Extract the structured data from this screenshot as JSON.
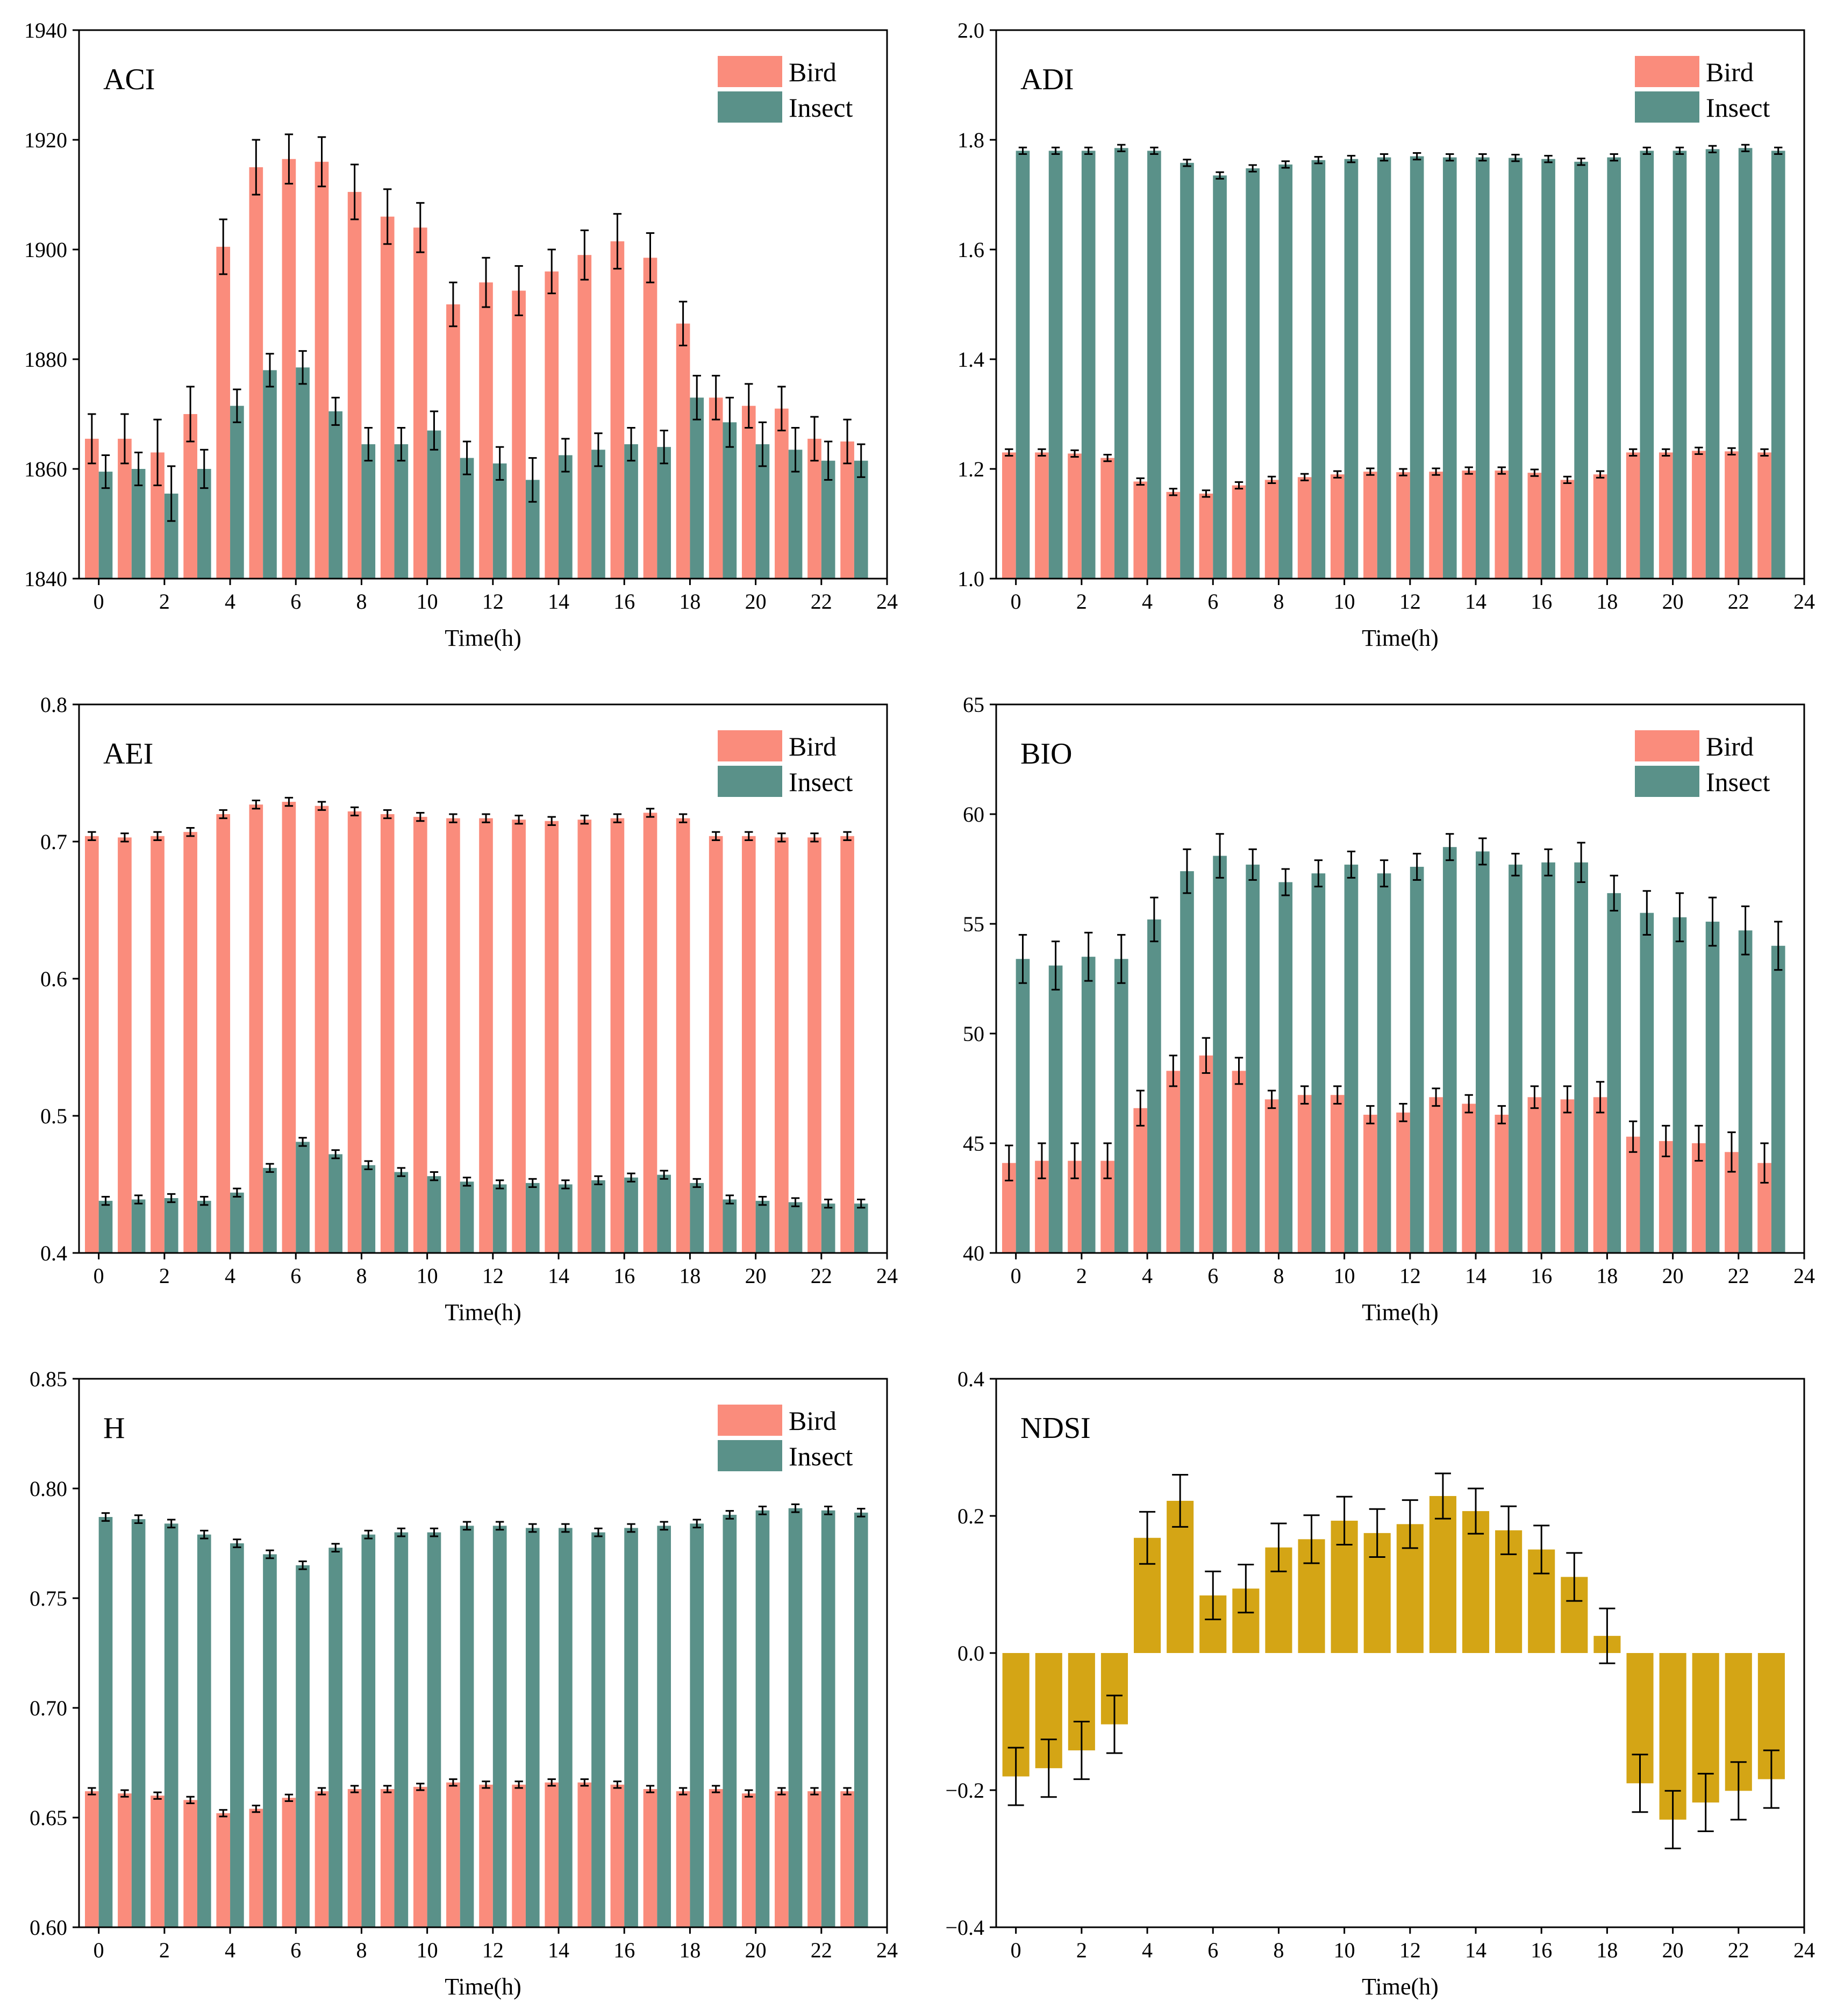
{
  "figure": {
    "xlabel": "Time(h)"
  },
  "colors": {
    "bird": "#FA8C7C",
    "insect": "#5A9189",
    "ndsi": "#D4A515",
    "axis": "#000000"
  },
  "legend": {
    "bird_label": "Bird",
    "insect_label": "Insect"
  },
  "chart_data": [
    {
      "id": "aci",
      "type": "bar",
      "title": "ACI",
      "xlabel": "Time(h)",
      "ylabel": "",
      "xlim": [
        -0.6,
        24
      ],
      "ylim": [
        1840,
        1940
      ],
      "xticks": [
        0,
        2,
        4,
        6,
        8,
        10,
        12,
        14,
        16,
        18,
        20,
        22,
        24
      ],
      "xtick_labels": [
        "0",
        "2",
        "4",
        "6",
        "8",
        "10",
        "12",
        "14",
        "16",
        "18",
        "20",
        "22",
        "24"
      ],
      "yticks": [
        1840,
        1860,
        1880,
        1900,
        1920,
        1940
      ],
      "ytick_labels": [
        "1840",
        "1860",
        "1880",
        "1900",
        "1920",
        "1940"
      ],
      "legend": "top-right",
      "x": [
        0,
        1,
        2,
        3,
        4,
        5,
        6,
        7,
        8,
        9,
        10,
        11,
        12,
        13,
        14,
        15,
        16,
        17,
        18,
        19,
        20,
        21,
        22,
        23
      ],
      "series": [
        {
          "name": "Bird",
          "values": [
            1865.5,
            1865.5,
            1863,
            1870,
            1900.5,
            1915,
            1916.5,
            1916,
            1910.5,
            1906,
            1904,
            1890,
            1894,
            1892.5,
            1896,
            1899,
            1901.5,
            1898.5,
            1886.5,
            1873,
            1871.5,
            1871,
            1865.5,
            1865
          ],
          "errors": [
            4.5,
            4.5,
            6,
            5,
            5,
            5,
            4.5,
            4.5,
            5,
            5,
            4.5,
            4,
            4.5,
            4.5,
            4,
            4.5,
            5,
            4.5,
            4,
            4,
            4,
            4,
            4,
            4
          ]
        },
        {
          "name": "Insect",
          "values": [
            1859.5,
            1860,
            1855.5,
            1860,
            1871.5,
            1878,
            1878.5,
            1870.5,
            1864.5,
            1864.5,
            1867,
            1862,
            1861,
            1858,
            1862.5,
            1863.5,
            1864.5,
            1864,
            1873,
            1868.5,
            1864.5,
            1863.5,
            1861.5,
            1861.5
          ],
          "errors": [
            3,
            3,
            5,
            3.5,
            3,
            3,
            3,
            2.5,
            3,
            3,
            3.5,
            3,
            3,
            4,
            3,
            3,
            3,
            3,
            4,
            4.5,
            4,
            4,
            3.5,
            3
          ]
        }
      ]
    },
    {
      "id": "adi",
      "type": "bar",
      "title": "ADI",
      "xlabel": "Time(h)",
      "ylabel": "",
      "xlim": [
        -0.6,
        24
      ],
      "ylim": [
        1.0,
        2.0
      ],
      "xticks": [
        0,
        2,
        4,
        6,
        8,
        10,
        12,
        14,
        16,
        18,
        20,
        22,
        24
      ],
      "xtick_labels": [
        "0",
        "2",
        "4",
        "6",
        "8",
        "10",
        "12",
        "14",
        "16",
        "18",
        "20",
        "22",
        "24"
      ],
      "yticks": [
        1.0,
        1.2,
        1.4,
        1.6,
        1.8,
        2.0
      ],
      "ytick_labels": [
        "1.0",
        "1.2",
        "1.4",
        "1.6",
        "1.8",
        "2.0"
      ],
      "legend": "top-right",
      "x": [
        0,
        1,
        2,
        3,
        4,
        5,
        6,
        7,
        8,
        9,
        10,
        11,
        12,
        13,
        14,
        15,
        16,
        17,
        18,
        19,
        20,
        21,
        22,
        23
      ],
      "series": [
        {
          "name": "Bird",
          "values": [
            1.23,
            1.23,
            1.228,
            1.22,
            1.177,
            1.158,
            1.155,
            1.17,
            1.18,
            1.185,
            1.19,
            1.195,
            1.194,
            1.195,
            1.197,
            1.197,
            1.193,
            1.18,
            1.19,
            1.23,
            1.23,
            1.233,
            1.232,
            1.23
          ],
          "errors": [
            0.006,
            0.006,
            0.006,
            0.006,
            0.006,
            0.006,
            0.006,
            0.006,
            0.006,
            0.006,
            0.006,
            0.006,
            0.006,
            0.006,
            0.006,
            0.006,
            0.006,
            0.006,
            0.006,
            0.006,
            0.006,
            0.006,
            0.006,
            0.006
          ]
        },
        {
          "name": "Insect",
          "values": [
            1.78,
            1.78,
            1.78,
            1.785,
            1.78,
            1.758,
            1.735,
            1.748,
            1.755,
            1.763,
            1.765,
            1.768,
            1.77,
            1.768,
            1.768,
            1.767,
            1.765,
            1.76,
            1.768,
            1.78,
            1.78,
            1.783,
            1.785,
            1.78
          ],
          "errors": [
            0.006,
            0.006,
            0.006,
            0.006,
            0.006,
            0.006,
            0.006,
            0.006,
            0.006,
            0.006,
            0.006,
            0.006,
            0.006,
            0.006,
            0.006,
            0.006,
            0.006,
            0.006,
            0.006,
            0.006,
            0.006,
            0.006,
            0.006,
            0.006
          ]
        }
      ]
    },
    {
      "id": "aei",
      "type": "bar",
      "title": "AEI",
      "xlabel": "Time(h)",
      "ylabel": "",
      "xlim": [
        -0.6,
        24
      ],
      "ylim": [
        0.4,
        0.8
      ],
      "xticks": [
        0,
        2,
        4,
        6,
        8,
        10,
        12,
        14,
        16,
        18,
        20,
        22,
        24
      ],
      "xtick_labels": [
        "0",
        "2",
        "4",
        "6",
        "8",
        "10",
        "12",
        "14",
        "16",
        "18",
        "20",
        "22",
        "24"
      ],
      "yticks": [
        0.4,
        0.5,
        0.6,
        0.7,
        0.8
      ],
      "ytick_labels": [
        "0.4",
        "0.5",
        "0.6",
        "0.7",
        "0.8"
      ],
      "legend": "top-right",
      "x": [
        0,
        1,
        2,
        3,
        4,
        5,
        6,
        7,
        8,
        9,
        10,
        11,
        12,
        13,
        14,
        15,
        16,
        17,
        18,
        19,
        20,
        21,
        22,
        23
      ],
      "series": [
        {
          "name": "Bird",
          "values": [
            0.704,
            0.703,
            0.704,
            0.707,
            0.72,
            0.727,
            0.729,
            0.726,
            0.722,
            0.72,
            0.718,
            0.717,
            0.717,
            0.716,
            0.715,
            0.716,
            0.717,
            0.721,
            0.717,
            0.704,
            0.704,
            0.703,
            0.703,
            0.704
          ],
          "errors": [
            0.003,
            0.003,
            0.003,
            0.003,
            0.003,
            0.003,
            0.003,
            0.003,
            0.003,
            0.003,
            0.003,
            0.003,
            0.003,
            0.003,
            0.003,
            0.003,
            0.003,
            0.003,
            0.003,
            0.003,
            0.003,
            0.003,
            0.003,
            0.003
          ]
        },
        {
          "name": "Insect",
          "values": [
            0.438,
            0.439,
            0.44,
            0.438,
            0.444,
            0.462,
            0.481,
            0.472,
            0.464,
            0.459,
            0.456,
            0.452,
            0.45,
            0.451,
            0.45,
            0.453,
            0.455,
            0.457,
            0.451,
            0.439,
            0.438,
            0.437,
            0.436,
            0.436
          ],
          "errors": [
            0.003,
            0.003,
            0.003,
            0.003,
            0.003,
            0.003,
            0.003,
            0.003,
            0.003,
            0.003,
            0.003,
            0.003,
            0.003,
            0.003,
            0.003,
            0.003,
            0.003,
            0.003,
            0.003,
            0.003,
            0.003,
            0.003,
            0.003,
            0.003
          ]
        }
      ]
    },
    {
      "id": "bio",
      "type": "bar",
      "title": "BIO",
      "xlabel": "Time(h)",
      "ylabel": "",
      "xlim": [
        -0.6,
        24
      ],
      "ylim": [
        40,
        65
      ],
      "xticks": [
        0,
        2,
        4,
        6,
        8,
        10,
        12,
        14,
        16,
        18,
        20,
        22,
        24
      ],
      "xtick_labels": [
        "0",
        "2",
        "4",
        "6",
        "8",
        "10",
        "12",
        "14",
        "16",
        "18",
        "20",
        "22",
        "24"
      ],
      "yticks": [
        40,
        45,
        50,
        55,
        60,
        65
      ],
      "ytick_labels": [
        "40",
        "45",
        "50",
        "55",
        "60",
        "65"
      ],
      "legend": "top-right",
      "x": [
        0,
        1,
        2,
        3,
        4,
        5,
        6,
        7,
        8,
        9,
        10,
        11,
        12,
        13,
        14,
        15,
        16,
        17,
        18,
        19,
        20,
        21,
        22,
        23
      ],
      "series": [
        {
          "name": "Bird",
          "values": [
            44.1,
            44.2,
            44.2,
            44.2,
            46.6,
            48.3,
            49.0,
            48.3,
            47.0,
            47.2,
            47.2,
            46.3,
            46.4,
            47.1,
            46.8,
            46.3,
            47.1,
            47.0,
            47.1,
            45.3,
            45.1,
            45.0,
            44.6,
            44.1
          ],
          "errors": [
            0.8,
            0.8,
            0.8,
            0.8,
            0.8,
            0.7,
            0.8,
            0.6,
            0.4,
            0.4,
            0.4,
            0.4,
            0.4,
            0.4,
            0.4,
            0.4,
            0.5,
            0.6,
            0.7,
            0.7,
            0.7,
            0.8,
            0.9,
            0.9
          ]
        },
        {
          "name": "Insect",
          "values": [
            53.4,
            53.1,
            53.5,
            53.4,
            55.2,
            57.4,
            58.1,
            57.7,
            56.9,
            57.3,
            57.7,
            57.3,
            57.6,
            58.5,
            58.3,
            57.7,
            57.8,
            57.8,
            56.4,
            55.5,
            55.3,
            55.1,
            54.7,
            54.0
          ],
          "errors": [
            1.1,
            1.1,
            1.1,
            1.1,
            1.0,
            1.0,
            1.0,
            0.7,
            0.6,
            0.6,
            0.6,
            0.6,
            0.6,
            0.6,
            0.6,
            0.5,
            0.6,
            0.9,
            0.8,
            1.0,
            1.1,
            1.1,
            1.1,
            1.1
          ]
        }
      ]
    },
    {
      "id": "h",
      "type": "bar",
      "title": "H",
      "xlabel": "Time(h)",
      "ylabel": "",
      "xlim": [
        -0.6,
        24
      ],
      "ylim": [
        0.6,
        0.85
      ],
      "xticks": [
        0,
        2,
        4,
        6,
        8,
        10,
        12,
        14,
        16,
        18,
        20,
        22,
        24
      ],
      "xtick_labels": [
        "0",
        "2",
        "4",
        "6",
        "8",
        "10",
        "12",
        "14",
        "16",
        "18",
        "20",
        "22",
        "24"
      ],
      "yticks": [
        0.6,
        0.65,
        0.7,
        0.75,
        0.8,
        0.85
      ],
      "ytick_labels": [
        "0.60",
        "0.65",
        "0.70",
        "0.75",
        "0.80",
        "0.85"
      ],
      "legend": "top-right",
      "x": [
        0,
        1,
        2,
        3,
        4,
        5,
        6,
        7,
        8,
        9,
        10,
        11,
        12,
        13,
        14,
        15,
        16,
        17,
        18,
        19,
        20,
        21,
        22,
        23
      ],
      "series": [
        {
          "name": "Bird",
          "values": [
            0.662,
            0.661,
            0.66,
            0.658,
            0.652,
            0.654,
            0.659,
            0.662,
            0.663,
            0.663,
            0.664,
            0.666,
            0.665,
            0.665,
            0.666,
            0.666,
            0.665,
            0.663,
            0.662,
            0.663,
            0.661,
            0.662,
            0.662,
            0.662
          ],
          "errors": [
            0.0015,
            0.0015,
            0.0015,
            0.0015,
            0.0015,
            0.0015,
            0.0015,
            0.0015,
            0.0015,
            0.0015,
            0.0015,
            0.0015,
            0.0015,
            0.0015,
            0.0015,
            0.0015,
            0.0015,
            0.0015,
            0.0015,
            0.0015,
            0.0015,
            0.0015,
            0.0015,
            0.0015
          ]
        },
        {
          "name": "Insect",
          "values": [
            0.787,
            0.786,
            0.784,
            0.779,
            0.775,
            0.77,
            0.765,
            0.773,
            0.779,
            0.78,
            0.78,
            0.783,
            0.783,
            0.782,
            0.782,
            0.78,
            0.782,
            0.783,
            0.784,
            0.788,
            0.79,
            0.791,
            0.79,
            0.789
          ],
          "errors": [
            0.0018,
            0.0018,
            0.0018,
            0.0018,
            0.0018,
            0.0018,
            0.0018,
            0.0018,
            0.0018,
            0.0018,
            0.0018,
            0.0018,
            0.0018,
            0.0018,
            0.0018,
            0.0018,
            0.0018,
            0.0018,
            0.0018,
            0.0018,
            0.0018,
            0.0018,
            0.0018,
            0.0018
          ]
        }
      ]
    },
    {
      "id": "ndsi",
      "type": "bar",
      "title": "NDSI",
      "xlabel": "Time(h)",
      "ylabel": "",
      "xlim": [
        -0.6,
        24
      ],
      "ylim": [
        -0.4,
        0.4
      ],
      "xticks": [
        0,
        2,
        4,
        6,
        8,
        10,
        12,
        14,
        16,
        18,
        20,
        22,
        24
      ],
      "xtick_labels": [
        "0",
        "2",
        "4",
        "6",
        "8",
        "10",
        "12",
        "14",
        "16",
        "18",
        "20",
        "22",
        "24"
      ],
      "yticks": [
        -0.4,
        -0.2,
        0.0,
        0.2,
        0.4
      ],
      "ytick_labels": [
        "−0.4",
        "−0.2",
        "0.0",
        "0.2",
        "0.4"
      ],
      "legend": "none",
      "x": [
        0,
        1,
        2,
        3,
        4,
        5,
        6,
        7,
        8,
        9,
        10,
        11,
        12,
        13,
        14,
        15,
        16,
        17,
        18,
        19,
        20,
        21,
        22,
        23
      ],
      "series": [
        {
          "name": "NDSI",
          "values": [
            -0.18,
            -0.168,
            -0.142,
            -0.104,
            0.168,
            0.222,
            0.084,
            0.094,
            0.154,
            0.166,
            0.193,
            0.175,
            0.188,
            0.229,
            0.207,
            0.179,
            0.151,
            0.111,
            0.025,
            -0.19,
            -0.243,
            -0.218,
            -0.201,
            -0.184
          ],
          "errors": [
            0.042,
            0.042,
            0.042,
            0.042,
            0.038,
            0.038,
            0.035,
            0.035,
            0.035,
            0.035,
            0.035,
            0.035,
            0.035,
            0.033,
            0.033,
            0.035,
            0.035,
            0.035,
            0.04,
            0.042,
            0.042,
            0.042,
            0.042,
            0.042
          ]
        }
      ]
    }
  ]
}
